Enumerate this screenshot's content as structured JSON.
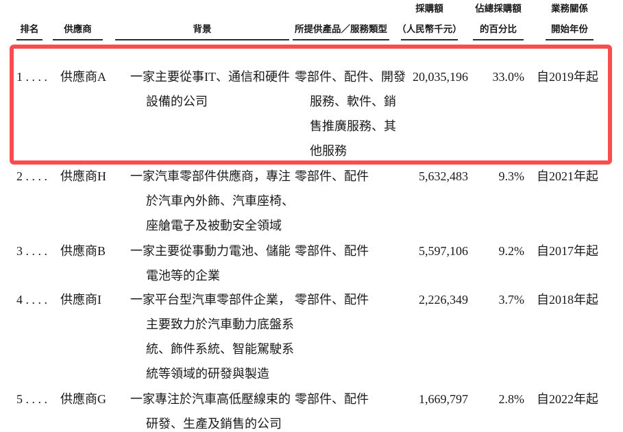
{
  "page": {
    "background_color": "#ffffff",
    "text_color": "#1a1a1a",
    "highlight_color": "#f94d52"
  },
  "table": {
    "columns": {
      "rank": "排名",
      "supplier": "供應商",
      "background": "背景",
      "services": "所提供產品／服務類型",
      "amount_line1": "採購額",
      "amount_line2": "（人民幣千元）",
      "percent_line1": "佔總採購額",
      "percent_line2": "的百分比",
      "year_line1": "業務關係",
      "year_line2": "開始年份"
    },
    "rows": [
      {
        "rank": "1 . . . .",
        "supplier": "供應商A",
        "background": "一家主要從事IT、通信和硬件\n設備的公司",
        "services": "零部件、配件、開發\n服務、軟件、銷\n售推廣服務、其\n他服務",
        "amount": "20,035,196",
        "percent": "33.0%",
        "year": "自2019年起",
        "highlighted": true
      },
      {
        "rank": "2 . . . .",
        "supplier": "供應商H",
        "background": "一家汽車零部件供應商，專注\n於汽車內外飾、汽車座椅、\n座艙電子及被動安全領域",
        "services": "零部件、配件",
        "amount": "5,632,483",
        "percent": "9.3%",
        "year": "自2021年起",
        "highlighted": false
      },
      {
        "rank": "3 . . . .",
        "supplier": "供應商B",
        "background": "一家主要從事動力電池、儲能\n電池等的企業",
        "services": "零部件、配件",
        "amount": "5,597,106",
        "percent": "9.2%",
        "year": "自2017年起",
        "highlighted": false
      },
      {
        "rank": "4 . . . .",
        "supplier": "供應商I",
        "background": "一家平台型汽車零部件企業，\n主要致力於汽車動力底盤系\n統、飾件系統、智能駕駛系\n統等領域的研發與製造",
        "services": "零部件、配件",
        "amount": "2,226,349",
        "percent": "3.7%",
        "year": "自2018年起",
        "highlighted": false
      },
      {
        "rank": "5 . . . .",
        "supplier": "供應商G",
        "background": "一家專注於汽車高低壓線束的\n研發、生產及銷售的公司",
        "services": "零部件、配件",
        "amount": "1,669,797",
        "percent": "2.8%",
        "year": "自2022年起",
        "highlighted": false
      }
    ]
  }
}
